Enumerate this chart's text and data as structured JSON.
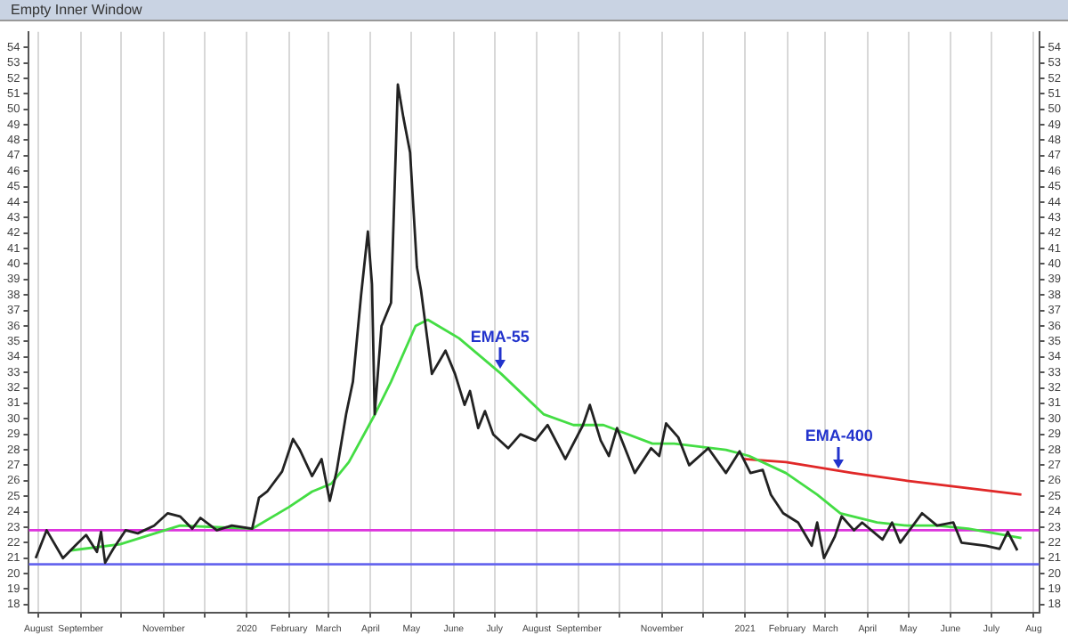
{
  "chart_data": {
    "type": "line",
    "title": "Empty Inner Window",
    "xlim": [
      "2019-07-25",
      "2021-08-05"
    ],
    "xticks": [
      {
        "value": "2019-08-01",
        "label": "August"
      },
      {
        "value": "2019-09-01",
        "label": "September"
      },
      {
        "value": "2019-10-01",
        "label": null
      },
      {
        "value": "2019-11-01",
        "label": "November"
      },
      {
        "value": "2019-12-01",
        "label": null
      },
      {
        "value": "2020-01-01",
        "label": "2020"
      },
      {
        "value": "2020-02-01",
        "label": "February"
      },
      {
        "value": "2020-03-01",
        "label": "March"
      },
      {
        "value": "2020-04-01",
        "label": "April"
      },
      {
        "value": "2020-05-01",
        "label": "May"
      },
      {
        "value": "2020-06-01",
        "label": "June"
      },
      {
        "value": "2020-07-01",
        "label": "July"
      },
      {
        "value": "2020-08-01",
        "label": "August"
      },
      {
        "value": "2020-09-01",
        "label": "September"
      },
      {
        "value": "2020-10-01",
        "label": null
      },
      {
        "value": "2020-11-01",
        "label": "November"
      },
      {
        "value": "2020-12-01",
        "label": null
      },
      {
        "value": "2021-01-01",
        "label": "2021"
      },
      {
        "value": "2021-02-01",
        "label": "February"
      },
      {
        "value": "2021-03-01",
        "label": "March"
      },
      {
        "value": "2021-04-01",
        "label": "April"
      },
      {
        "value": "2021-05-01",
        "label": "May"
      },
      {
        "value": "2021-06-01",
        "label": "June"
      },
      {
        "value": "2021-07-01",
        "label": "July"
      },
      {
        "value": "2021-08-01",
        "label": "Aug"
      }
    ],
    "ylim": [
      17.5,
      55
    ],
    "yticks": [
      18,
      19,
      20,
      21,
      22,
      23,
      24,
      25,
      26,
      27,
      28,
      29,
      30,
      31,
      32,
      33,
      34,
      35,
      36,
      37,
      38,
      39,
      40,
      41,
      42,
      43,
      44,
      45,
      46,
      47,
      48,
      49,
      50,
      51,
      52,
      53,
      54
    ],
    "y2lim": [
      17.5,
      55
    ],
    "y2ticks": [
      18,
      19,
      20,
      21,
      22,
      23,
      24,
      25,
      26,
      27,
      28,
      29,
      30,
      31,
      32,
      33,
      34,
      35,
      36,
      37,
      38,
      39,
      40,
      41,
      42,
      43,
      44,
      45,
      46,
      47,
      48,
      49,
      50,
      51,
      52,
      53,
      54
    ],
    "grid": "x",
    "legend": false,
    "marker": "none",
    "line_style": "solid",
    "series": [
      {
        "color": "#222222",
        "x": [
          "2019-07-30",
          "2019-08-07",
          "2019-08-19",
          "2019-08-28",
          "2019-09-05",
          "2019-09-13",
          "2019-09-16",
          "2019-09-19",
          "2019-09-25",
          "2019-10-04",
          "2019-10-13",
          "2019-10-25",
          "2019-11-04",
          "2019-11-13",
          "2019-11-22",
          "2019-11-28",
          "2019-12-10",
          "2019-12-21",
          "2020-01-05",
          "2020-01-10",
          "2020-01-16",
          "2020-01-27",
          "2020-02-04",
          "2020-02-09",
          "2020-02-18",
          "2020-02-25",
          "2020-03-02",
          "2020-03-07",
          "2020-03-14",
          "2020-03-19",
          "2020-03-25",
          "2020-03-30",
          "2020-04-02",
          "2020-04-04",
          "2020-04-09",
          "2020-04-16",
          "2020-04-21",
          "2020-04-25",
          "2020-04-30",
          "2020-05-05",
          "2020-05-08",
          "2020-05-16",
          "2020-05-26",
          "2020-06-02",
          "2020-06-09",
          "2020-06-13",
          "2020-06-19",
          "2020-06-24",
          "2020-06-30",
          "2020-07-11",
          "2020-07-20",
          "2020-07-31",
          "2020-08-09",
          "2020-08-22",
          "2020-09-04",
          "2020-09-09",
          "2020-09-17",
          "2020-09-23",
          "2020-09-29",
          "2020-10-12",
          "2020-10-24",
          "2020-10-30",
          "2020-11-04",
          "2020-11-13",
          "2020-11-21",
          "2020-12-05",
          "2020-12-18",
          "2020-12-28",
          "2021-01-05",
          "2021-01-14",
          "2021-01-20",
          "2021-01-29",
          "2021-02-09",
          "2021-02-19",
          "2021-02-23",
          "2021-02-28",
          "2021-03-08",
          "2021-03-13",
          "2021-03-22",
          "2021-03-28",
          "2021-04-12",
          "2021-04-19",
          "2021-04-25",
          "2021-05-11",
          "2021-05-22",
          "2021-06-03",
          "2021-06-09",
          "2021-06-27",
          "2021-07-07",
          "2021-07-13",
          "2021-07-20"
        ],
        "values": [
          21.0,
          22.8,
          21.0,
          21.8,
          22.5,
          21.4,
          22.7,
          20.7,
          21.6,
          22.8,
          22.6,
          23.1,
          23.9,
          23.7,
          22.9,
          23.6,
          22.8,
          23.1,
          22.9,
          24.9,
          25.3,
          26.6,
          28.7,
          28.0,
          26.3,
          27.4,
          24.7,
          26.6,
          30.3,
          32.4,
          38.0,
          42.1,
          38.7,
          30.3,
          36.0,
          37.5,
          51.6,
          49.5,
          47.2,
          39.8,
          38.3,
          32.9,
          34.4,
          32.9,
          30.9,
          31.8,
          29.4,
          30.5,
          29.0,
          28.1,
          29.0,
          28.6,
          29.6,
          27.4,
          29.6,
          30.9,
          28.6,
          27.6,
          29.4,
          26.5,
          28.1,
          27.6,
          29.7,
          28.8,
          27.0,
          28.1,
          26.5,
          27.9,
          26.5,
          26.7,
          25.1,
          23.9,
          23.3,
          21.8,
          23.3,
          21.0,
          22.4,
          23.7,
          22.8,
          23.3,
          22.2,
          23.3,
          22.0,
          23.9,
          23.1,
          23.3,
          22.0,
          21.8,
          21.6,
          22.7,
          21.5
        ]
      },
      {
        "color": "#44dd44",
        "x": [
          "2019-08-25",
          "2019-09-30",
          "2019-11-13",
          "2020-01-05",
          "2020-02-01",
          "2020-02-18",
          "2020-03-03",
          "2020-03-16",
          "2020-04-03",
          "2020-04-16",
          "2020-05-04",
          "2020-05-13",
          "2020-06-05",
          "2020-07-06",
          "2020-08-06",
          "2020-08-28",
          "2020-09-19",
          "2020-10-25",
          "2020-11-10",
          "2020-12-18",
          "2021-01-04",
          "2021-01-31",
          "2021-02-23",
          "2021-03-12",
          "2021-04-08",
          "2021-04-30",
          "2021-05-22",
          "2021-06-14",
          "2021-07-23"
        ],
        "values": [
          21.5,
          21.9,
          23.1,
          22.9,
          24.3,
          25.3,
          25.8,
          27.2,
          30.1,
          32.4,
          36.0,
          36.4,
          35.2,
          32.9,
          30.3,
          29.6,
          29.6,
          28.4,
          28.4,
          28.0,
          27.6,
          26.5,
          25.1,
          23.9,
          23.3,
          23.1,
          23.1,
          22.9,
          22.3
        ]
      },
      {
        "color": "#e02828",
        "x": [
          "2020-12-31",
          "2021-01-31",
          "2021-03-21",
          "2021-04-30",
          "2021-07-23"
        ],
        "values": [
          27.4,
          27.2,
          26.5,
          26.0,
          25.1
        ]
      }
    ],
    "ref_lines": [
      {
        "axis": "y",
        "value": 22.8,
        "color": "#dd33dd"
      },
      {
        "axis": "y",
        "value": 20.6,
        "color": "#6666ee"
      }
    ],
    "annotations": [
      {
        "text": "EMA-55",
        "x": "2020-07-05",
        "y": 32.9
      },
      {
        "text": "EMA-400",
        "x": "2021-03-11",
        "y": 26.5
      }
    ]
  }
}
